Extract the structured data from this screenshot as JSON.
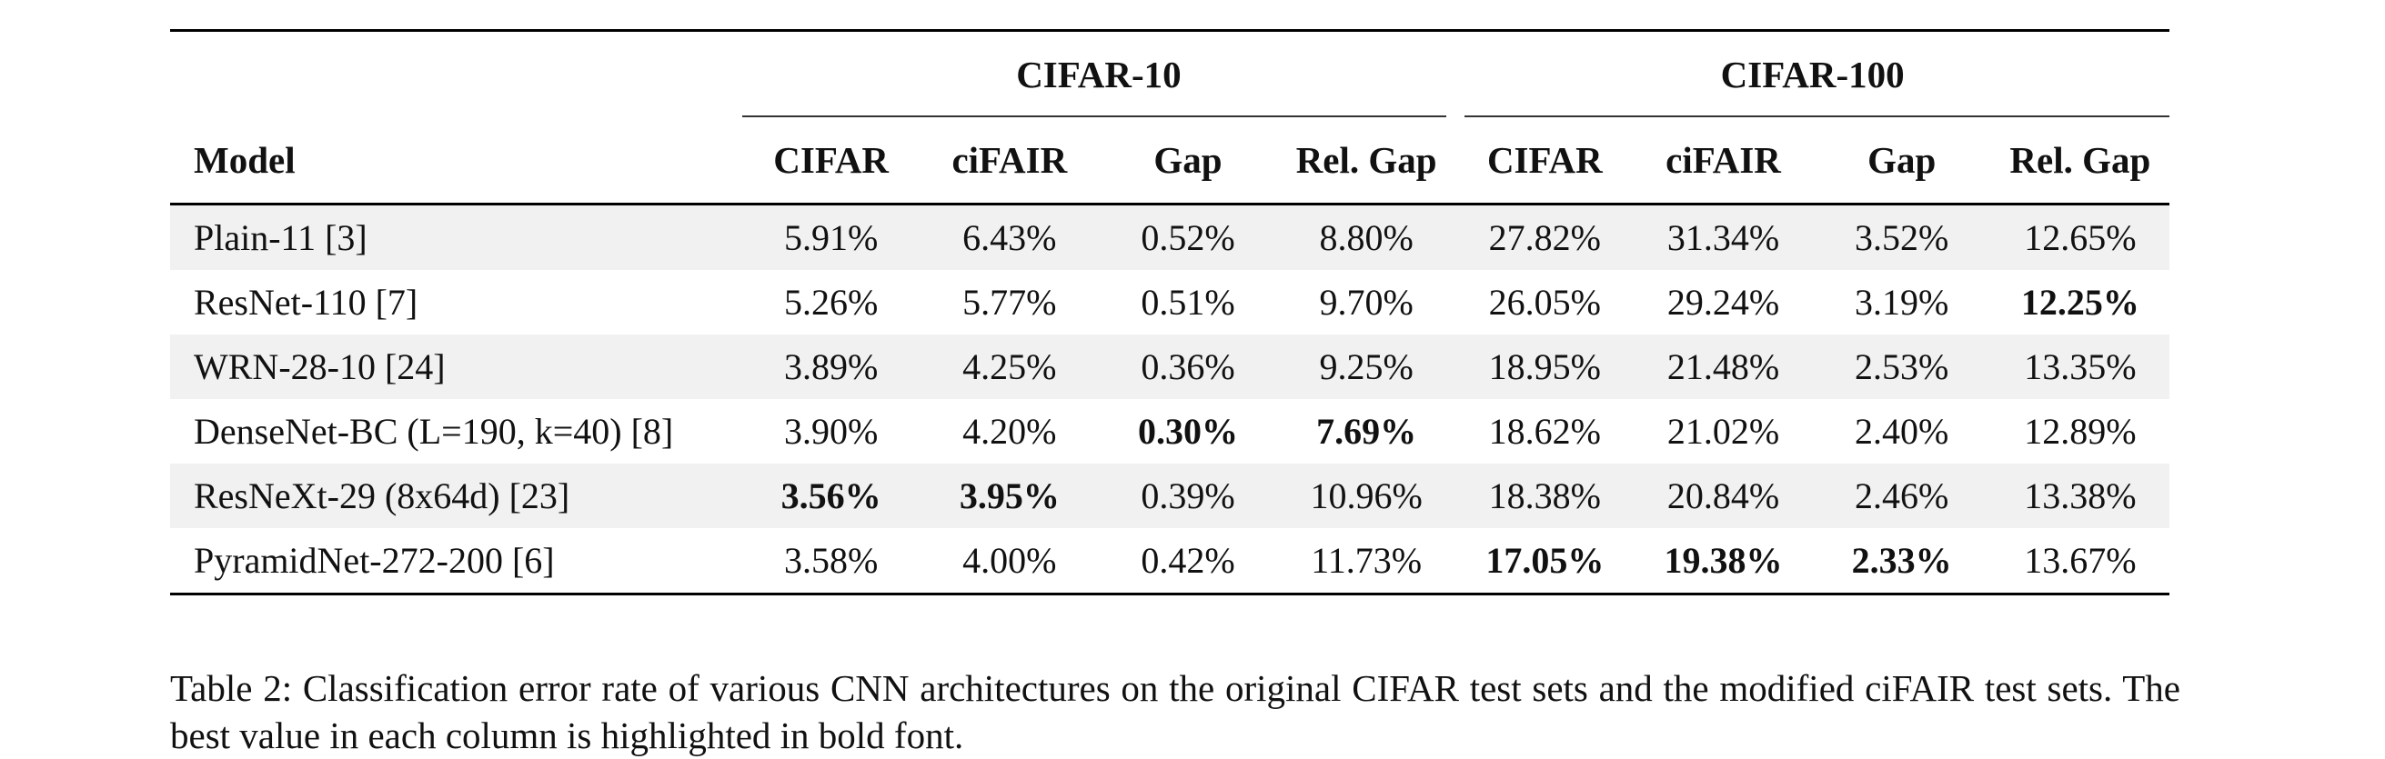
{
  "table": {
    "groups": [
      "CIFAR-10",
      "CIFAR-100"
    ],
    "columns": [
      "Model",
      "CIFAR",
      "ciFAIR",
      "Gap",
      "Rel. Gap",
      "CIFAR",
      "ciFAIR",
      "Gap",
      "Rel. Gap"
    ],
    "rows": [
      {
        "model": "Plain-11 [3]",
        "cells": [
          "5.91%",
          "6.43%",
          "0.52%",
          "8.80%",
          "27.82%",
          "31.34%",
          "3.52%",
          "12.65%"
        ],
        "bold": [
          false,
          false,
          false,
          false,
          false,
          false,
          false,
          false
        ]
      },
      {
        "model": "ResNet-110 [7]",
        "cells": [
          "5.26%",
          "5.77%",
          "0.51%",
          "9.70%",
          "26.05%",
          "29.24%",
          "3.19%",
          "12.25%"
        ],
        "bold": [
          false,
          false,
          false,
          false,
          false,
          false,
          false,
          true
        ]
      },
      {
        "model": "WRN-28-10 [24]",
        "cells": [
          "3.89%",
          "4.25%",
          "0.36%",
          "9.25%",
          "18.95%",
          "21.48%",
          "2.53%",
          "13.35%"
        ],
        "bold": [
          false,
          false,
          false,
          false,
          false,
          false,
          false,
          false
        ]
      },
      {
        "model": "DenseNet-BC (L=190, k=40) [8]",
        "cells": [
          "3.90%",
          "4.20%",
          "0.30%",
          "7.69%",
          "18.62%",
          "21.02%",
          "2.40%",
          "12.89%"
        ],
        "bold": [
          false,
          false,
          true,
          true,
          false,
          false,
          false,
          false
        ]
      },
      {
        "model": "ResNeXt-29 (8x64d) [23]",
        "cells": [
          "3.56%",
          "3.95%",
          "0.39%",
          "10.96%",
          "18.38%",
          "20.84%",
          "2.46%",
          "13.38%"
        ],
        "bold": [
          true,
          true,
          false,
          false,
          false,
          false,
          false,
          false
        ]
      },
      {
        "model": "PyramidNet-272-200 [6]",
        "cells": [
          "3.58%",
          "4.00%",
          "0.42%",
          "11.73%",
          "17.05%",
          "19.38%",
          "2.33%",
          "13.67%"
        ],
        "bold": [
          false,
          false,
          false,
          false,
          true,
          true,
          true,
          false
        ]
      }
    ]
  },
  "caption": "Table 2: Classification error rate of various CNN architectures on the original CIFAR test sets and the modified ciFAIR test sets. The best value in each column is highlighted in bold font."
}
